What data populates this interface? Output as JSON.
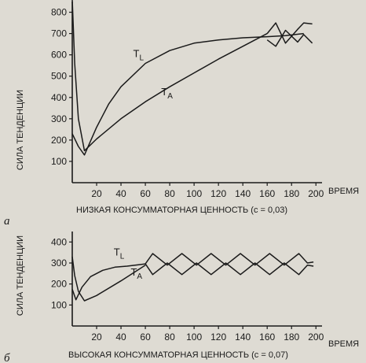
{
  "chart_data": [
    {
      "type": "line",
      "panel_label": "а",
      "title": "",
      "xlabel": "ВРЕМЯ",
      "ylabel": "СИЛА ТЕНДЕНЦИИ",
      "caption": "НИЗКАЯ КОНСУММАТОРНАЯ ЦЕННОСТЬ (c = 0,03)",
      "xlim": [
        0,
        205
      ],
      "ylim": [
        0,
        850
      ],
      "xticks": [
        "20",
        "40",
        "60",
        "80",
        "100",
        "120",
        "140",
        "160",
        "180",
        "200"
      ],
      "yticks": [
        "100",
        "200",
        "300",
        "400",
        "500",
        "600",
        "700",
        "800"
      ],
      "series": [
        {
          "name": "T_L",
          "x": [
            0,
            5,
            10,
            20,
            30,
            40,
            60,
            80,
            100,
            120,
            140,
            160,
            175,
            190
          ],
          "y": [
            230,
            170,
            130,
            260,
            370,
            450,
            560,
            620,
            655,
            670,
            680,
            685,
            690,
            700
          ]
        },
        {
          "name": "T_A",
          "x": [
            0,
            2,
            5,
            10,
            20,
            40,
            60,
            80,
            100,
            120,
            140,
            160
          ],
          "y": [
            860,
            560,
            300,
            150,
            205,
            300,
            380,
            450,
            515,
            580,
            640,
            700
          ]
        }
      ],
      "oscillation_upper": {
        "x": [
          160,
          167,
          175,
          185,
          190,
          197
        ],
        "y": [
          700,
          750,
          655,
          720,
          750,
          745
        ]
      },
      "oscillation_lower": {
        "x": [
          160,
          167,
          175,
          185,
          190,
          197
        ],
        "y": [
          670,
          640,
          715,
          660,
          695,
          655
        ]
      },
      "curve_labels": [
        {
          "text": "T",
          "sub": "L",
          "x": 50,
          "y": 590
        },
        {
          "text": "T",
          "sub": "A",
          "x": 73,
          "y": 410
        }
      ]
    },
    {
      "type": "line",
      "panel_label": "б",
      "title": "",
      "xlabel": "ВРЕМЯ",
      "ylabel": "СИЛА ТЕНДЕНЦИИ",
      "caption": "ВЫСОКАЯ КОНСУММАТОРНАЯ ЦЕННОСТЬ (c = 0,07)",
      "xlim": [
        0,
        205
      ],
      "ylim": [
        0,
        450
      ],
      "xticks": [
        "20",
        "40",
        "60",
        "80",
        "100",
        "120",
        "140",
        "160",
        "180",
        "200"
      ],
      "yticks": [
        "100",
        "200",
        "300",
        "400"
      ],
      "series": [
        {
          "name": "T_L",
          "x": [
            0,
            3,
            8,
            15,
            25,
            35,
            45,
            55,
            60
          ],
          "y": [
            175,
            125,
            185,
            235,
            265,
            280,
            285,
            292,
            296
          ]
        },
        {
          "name": "T_A",
          "x": [
            0,
            2,
            5,
            10,
            20,
            40,
            60
          ],
          "y": [
            330,
            240,
            165,
            120,
            145,
            215,
            290
          ]
        }
      ],
      "oscillation_upper": {
        "x": [
          60,
          66,
          78,
          90,
          102,
          114,
          126,
          138,
          150,
          162,
          174,
          186,
          193,
          198
        ],
        "y": [
          296,
          345,
          290,
          345,
          290,
          345,
          290,
          345,
          290,
          345,
          290,
          345,
          300,
          305
        ]
      },
      "oscillation_lower": {
        "x": [
          60,
          66,
          78,
          90,
          102,
          114,
          126,
          138,
          150,
          162,
          174,
          186,
          193,
          198
        ],
        "y": [
          296,
          245,
          300,
          245,
          300,
          245,
          300,
          245,
          300,
          245,
          300,
          245,
          290,
          285
        ]
      },
      "curve_labels": [
        {
          "text": "T",
          "sub": "L",
          "x": 34,
          "y": 335
        },
        {
          "text": "T",
          "sub": "A",
          "x": 48,
          "y": 240
        }
      ]
    }
  ]
}
